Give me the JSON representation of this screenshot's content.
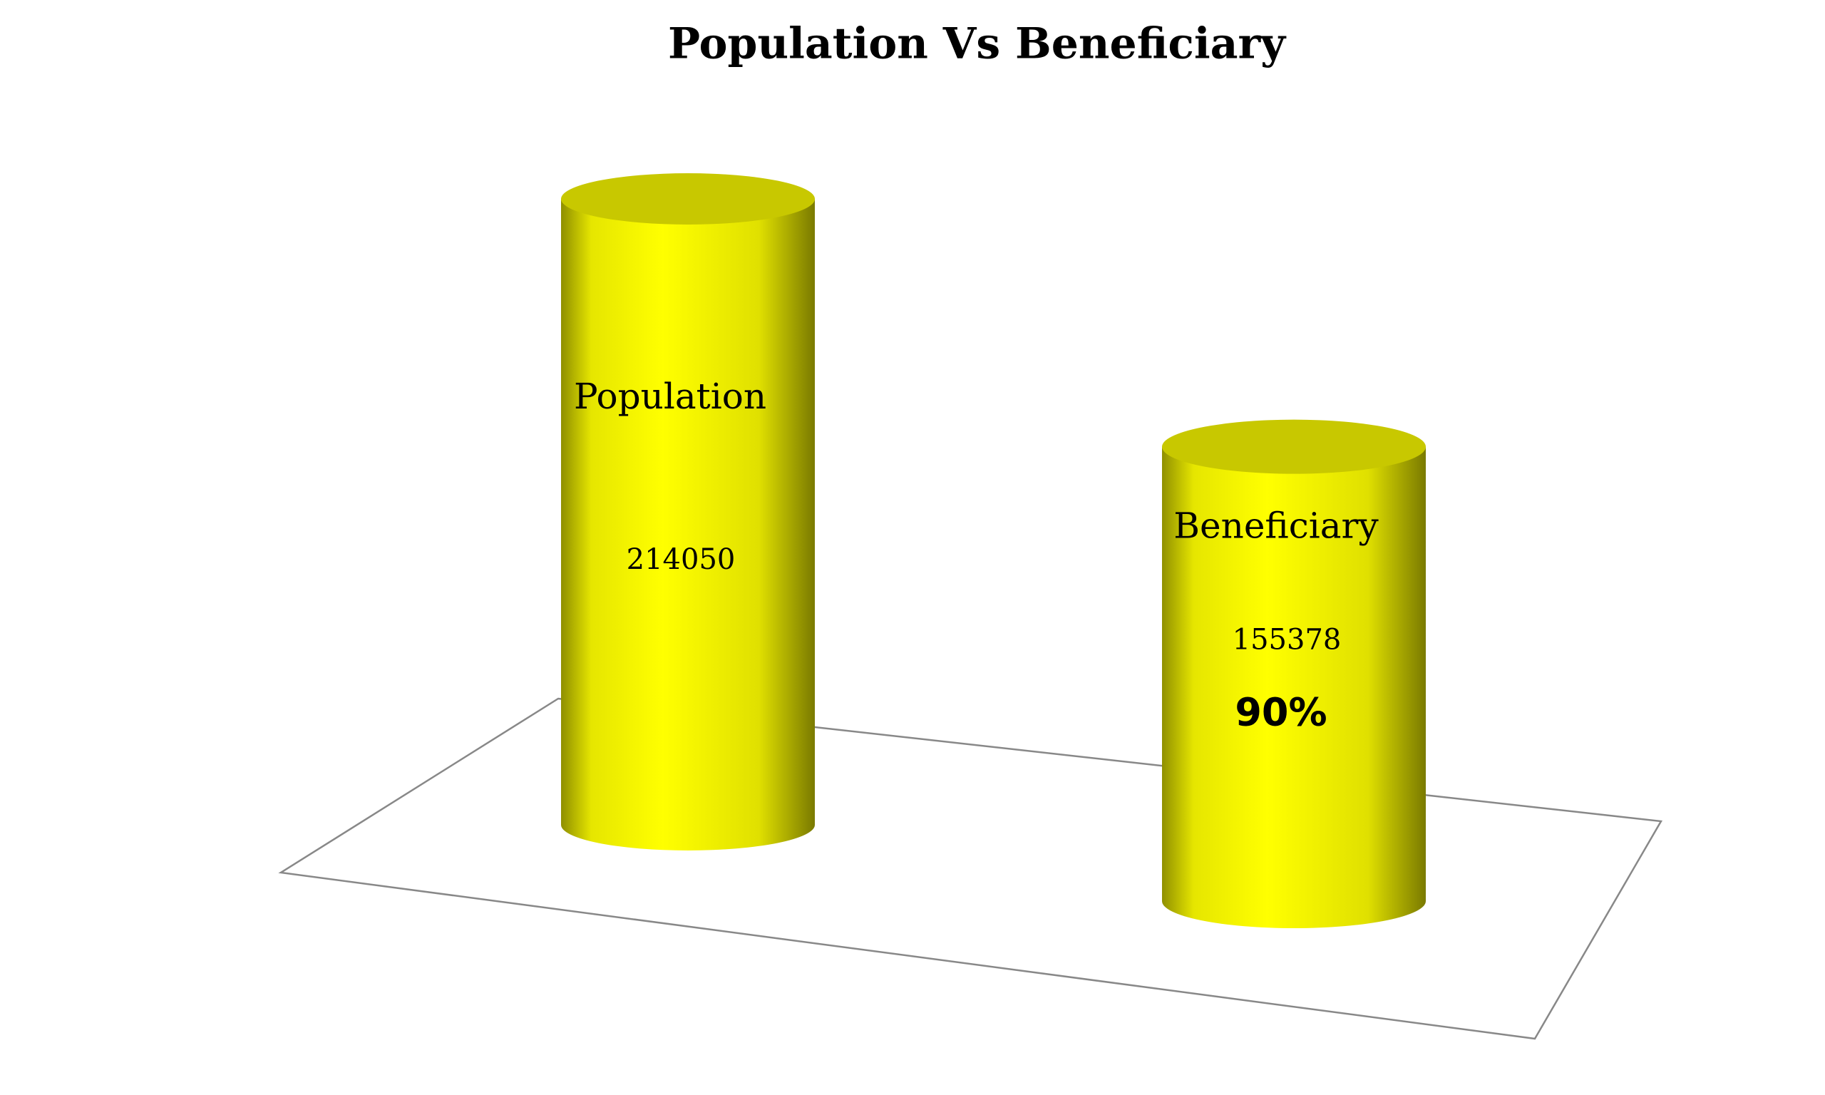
{
  "chart_data": {
    "type": "bar",
    "title": "Population Vs Beneficiary",
    "categories": [
      "Population",
      "Beneficiary"
    ],
    "values": [
      214050,
      155378
    ],
    "color": "#ffff00",
    "annotation": "90%"
  }
}
